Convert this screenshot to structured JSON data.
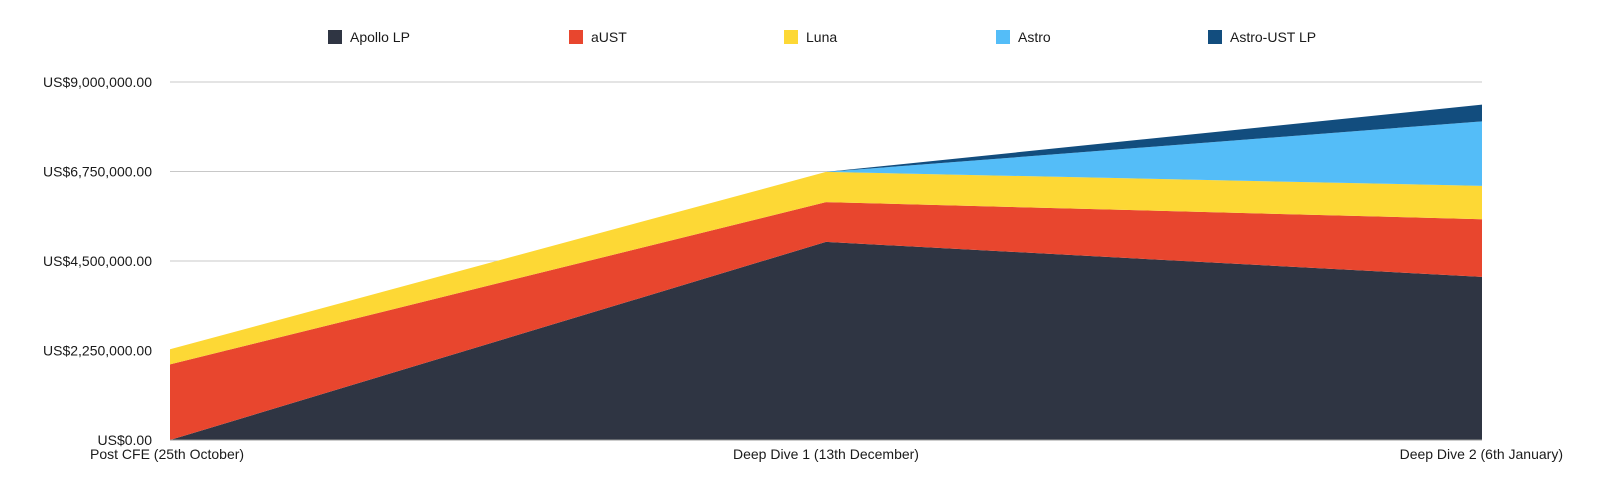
{
  "chart_data": {
    "type": "area",
    "stacked": true,
    "title": "",
    "xlabel": "",
    "ylabel": "",
    "categories": [
      "Post CFE (25th October)",
      "Deep Dive 1 (13th December)",
      "Deep Dive 2 (6th January)"
    ],
    "ylim": [
      0,
      9000000
    ],
    "yticks": [
      0,
      2250000,
      4500000,
      6750000,
      9000000
    ],
    "ytick_labels": [
      "US$0.00",
      "US$2,250,000.00",
      "US$4,500,000.00",
      "US$6,750,000.00",
      "US$9,000,000.00"
    ],
    "grid": true,
    "legend_position": "top",
    "series": [
      {
        "name": "Apollo LP",
        "color": "#2f3543",
        "values": [
          0,
          4980000,
          4100000
        ]
      },
      {
        "name": "aUST",
        "color": "#e8462e",
        "values": [
          1900000,
          1000000,
          1450000
        ]
      },
      {
        "name": "Luna",
        "color": "#fdd835",
        "values": [
          380000,
          760000,
          840000
        ]
      },
      {
        "name": "Astro",
        "color": "#54bdf8",
        "values": [
          0,
          0,
          1620000
        ]
      },
      {
        "name": "Astro-UST LP",
        "color": "#124d7e",
        "values": [
          0,
          0,
          420000
        ]
      }
    ]
  }
}
